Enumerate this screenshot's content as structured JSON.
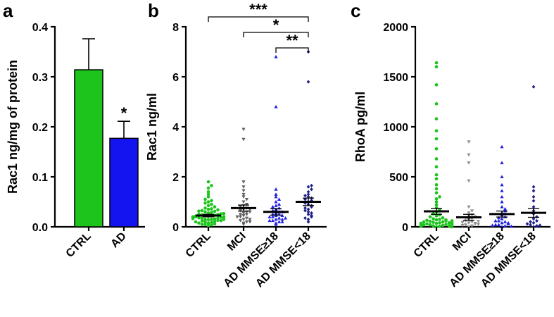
{
  "chart_data": [
    {
      "panel": "a",
      "type": "bar",
      "ylabel": "Rac1 ng/mg of protein",
      "ylim": [
        0,
        0.4
      ],
      "yticks": [
        "0.0",
        "0.1",
        "0.2",
        "0.3",
        "0.4"
      ],
      "categories": [
        "CTRL",
        "AD"
      ],
      "values": [
        0.314,
        0.177
      ],
      "errors": [
        0.062,
        0.034
      ],
      "colors": [
        "#1cc41c",
        "#1414f0"
      ],
      "annotations": [
        {
          "category": "AD",
          "text": "*"
        }
      ]
    },
    {
      "panel": "b",
      "type": "scatter",
      "ylabel": "Rac1 ng/ml",
      "ylim": [
        0,
        8
      ],
      "yticks": [
        "0",
        "2",
        "4",
        "6",
        "8"
      ],
      "categories": [
        "CTRL",
        "MCI",
        "AD MMSE≥18",
        "AD MMSE<18"
      ],
      "colors": [
        "#1cc41c",
        "#606060",
        "#2020e0",
        "#20208a"
      ],
      "means": [
        0.45,
        0.75,
        0.6,
        1.0
      ],
      "sems": [
        0.05,
        0.12,
        0.13,
        0.15
      ],
      "points": [
        [
          0.05,
          0.08,
          0.1,
          0.12,
          0.15,
          0.18,
          0.2,
          0.22,
          0.24,
          0.26,
          0.28,
          0.3,
          0.3,
          0.32,
          0.34,
          0.35,
          0.36,
          0.38,
          0.4,
          0.4,
          0.42,
          0.44,
          0.45,
          0.46,
          0.48,
          0.5,
          0.5,
          0.52,
          0.55,
          0.58,
          0.6,
          0.62,
          0.65,
          0.68,
          0.7,
          0.72,
          0.75,
          0.8,
          0.85,
          0.9,
          0.95,
          1.0,
          1.05,
          1.1,
          1.2,
          1.3,
          1.4,
          1.55,
          1.65,
          1.8,
          0.15,
          0.25,
          0.33,
          0.43,
          0.53,
          0.63,
          0.1,
          0.2,
          0.3,
          0.4
        ],
        [
          0.1,
          0.15,
          0.2,
          0.25,
          0.3,
          0.35,
          0.4,
          0.45,
          0.5,
          0.55,
          0.6,
          0.65,
          0.7,
          0.75,
          0.8,
          0.85,
          0.9,
          1.0,
          1.1,
          1.2,
          1.3,
          1.45,
          1.6,
          1.8,
          3.5,
          3.9,
          0.2,
          0.3,
          0.4,
          0.5,
          0.6,
          0.7
        ],
        [
          0.1,
          0.15,
          0.2,
          0.25,
          0.3,
          0.35,
          0.4,
          0.45,
          0.5,
          0.55,
          0.6,
          0.65,
          0.7,
          0.75,
          0.8,
          0.85,
          0.9,
          1.0,
          1.1,
          1.2,
          1.3,
          1.5,
          4.8,
          6.8,
          0.2,
          0.3,
          0.4,
          0.5,
          0.6,
          0.35,
          0.45,
          0.25
        ],
        [
          0.2,
          0.3,
          0.4,
          0.5,
          0.6,
          0.7,
          0.8,
          0.9,
          1.0,
          1.05,
          1.1,
          1.2,
          1.3,
          1.4,
          1.5,
          1.6,
          1.65,
          0.35,
          0.45,
          0.55,
          0.65,
          0.75,
          0.85,
          0.95,
          1.15,
          1.25,
          5.8,
          7.0
        ]
      ],
      "significance": [
        {
          "from": "CTRL",
          "to": "AD MMSE<18",
          "label": "***"
        },
        {
          "from": "MCI",
          "to": "AD MMSE<18",
          "label": "*"
        },
        {
          "from": "AD MMSE≥18",
          "to": "AD MMSE<18",
          "label": "**"
        }
      ]
    },
    {
      "panel": "c",
      "type": "scatter",
      "ylabel": "RhoA pg/ml",
      "ylim": [
        0,
        2000
      ],
      "yticks": [
        "0",
        "500",
        "1000",
        "1500",
        "2000"
      ],
      "categories": [
        "CTRL",
        "MCI",
        "AD MMSE≥18",
        "AD MMSE<18"
      ],
      "colors": [
        "#1cc41c",
        "#909090",
        "#2020e0",
        "#20208a"
      ],
      "means": [
        155,
        95,
        128,
        140
      ],
      "sems": [
        30,
        30,
        30,
        45
      ],
      "points": [
        [
          0,
          5,
          10,
          15,
          20,
          25,
          30,
          35,
          40,
          45,
          50,
          55,
          60,
          65,
          70,
          75,
          80,
          90,
          100,
          110,
          120,
          130,
          150,
          170,
          190,
          220,
          250,
          280,
          300,
          340,
          380,
          420,
          480,
          520,
          600,
          680,
          780,
          880,
          960,
          1080,
          1230,
          1420,
          1600,
          1640,
          10,
          20,
          30,
          40,
          50,
          60,
          70,
          5,
          15,
          25,
          35,
          45,
          0,
          10
        ],
        [
          0,
          10,
          20,
          30,
          40,
          50,
          60,
          70,
          80,
          90,
          100,
          110,
          120,
          140,
          160,
          200,
          460,
          640,
          720,
          850,
          15,
          25,
          35,
          45,
          55
        ],
        [
          0,
          10,
          20,
          30,
          40,
          50,
          60,
          80,
          100,
          120,
          140,
          160,
          200,
          250,
          300,
          360,
          420,
          500,
          640,
          800,
          20,
          40,
          60,
          90,
          130,
          180,
          5,
          15
        ],
        [
          0,
          10,
          20,
          40,
          60,
          80,
          100,
          130,
          160,
          200,
          260,
          300,
          360,
          400,
          1400,
          15,
          30,
          50
        ]
      ]
    }
  ]
}
